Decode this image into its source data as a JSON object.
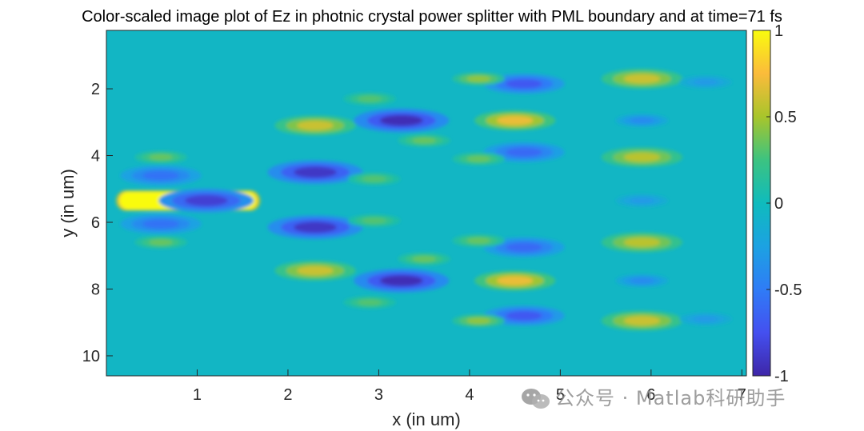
{
  "chart_data": {
    "type": "heatmap",
    "title": "Color-scaled image plot of Ez in photnic crystal power splitter with PML boundary and at time=71 fs",
    "xlabel": "x (in um)",
    "ylabel": "y (in um)",
    "xlim": [
      0,
      7.05
    ],
    "ylim": [
      10.6,
      0.25
    ],
    "y_direction": "reverse",
    "x_ticks": [
      1,
      2,
      3,
      4,
      5,
      6,
      7
    ],
    "y_ticks": [
      2,
      4,
      6,
      8,
      10
    ],
    "x_tick_labels": [
      "1",
      "2",
      "3",
      "4",
      "5",
      "6",
      "7"
    ],
    "y_tick_labels": [
      "2",
      "4",
      "6",
      "8",
      "10"
    ],
    "colorbar": {
      "limits": [
        -1,
        1
      ],
      "ticks": [
        1,
        0.5,
        0,
        -0.5,
        -1
      ],
      "tick_labels": [
        "1",
        "0.5",
        "0",
        "-0.5",
        "-1"
      ],
      "colormap": "parula"
    },
    "background_value": -0.05,
    "features": [
      {
        "x": 0.9,
        "y": 5.35,
        "value": 1.0,
        "shape": "rect",
        "w": 1.6,
        "h": 0.62
      },
      {
        "x": 1.1,
        "y": 5.35,
        "value": -0.85
      },
      {
        "x": 0.6,
        "y": 4.6,
        "value": -0.55
      },
      {
        "x": 0.6,
        "y": 6.05,
        "value": -0.55
      },
      {
        "x": 0.6,
        "y": 4.05,
        "value": 0.35
      },
      {
        "x": 0.6,
        "y": 6.6,
        "value": 0.35
      },
      {
        "x": 2.3,
        "y": 3.1,
        "value": 0.6
      },
      {
        "x": 2.3,
        "y": 4.5,
        "value": -0.9
      },
      {
        "x": 2.3,
        "y": 6.15,
        "value": -0.9
      },
      {
        "x": 2.3,
        "y": 7.45,
        "value": 0.6
      },
      {
        "x": 3.25,
        "y": 2.95,
        "value": -0.95
      },
      {
        "x": 3.25,
        "y": 7.75,
        "value": -0.95
      },
      {
        "x": 2.9,
        "y": 2.3,
        "value": 0.3
      },
      {
        "x": 2.9,
        "y": 8.4,
        "value": 0.3
      },
      {
        "x": 3.5,
        "y": 3.55,
        "value": 0.35
      },
      {
        "x": 3.5,
        "y": 7.1,
        "value": 0.35
      },
      {
        "x": 2.95,
        "y": 4.7,
        "value": 0.3
      },
      {
        "x": 2.95,
        "y": 5.95,
        "value": 0.3
      },
      {
        "x": 4.6,
        "y": 1.85,
        "value": -0.7
      },
      {
        "x": 4.5,
        "y": 2.95,
        "value": 0.7
      },
      {
        "x": 4.6,
        "y": 3.9,
        "value": -0.6
      },
      {
        "x": 4.6,
        "y": 6.75,
        "value": -0.6
      },
      {
        "x": 4.5,
        "y": 7.75,
        "value": 0.7
      },
      {
        "x": 4.6,
        "y": 8.8,
        "value": -0.7
      },
      {
        "x": 4.1,
        "y": 1.7,
        "value": 0.45
      },
      {
        "x": 4.1,
        "y": 4.1,
        "value": 0.35
      },
      {
        "x": 4.1,
        "y": 6.55,
        "value": 0.35
      },
      {
        "x": 4.1,
        "y": 8.95,
        "value": 0.45
      },
      {
        "x": 5.9,
        "y": 1.7,
        "value": 0.6
      },
      {
        "x": 5.9,
        "y": 2.95,
        "value": -0.4
      },
      {
        "x": 5.9,
        "y": 4.05,
        "value": 0.55
      },
      {
        "x": 5.9,
        "y": 5.35,
        "value": -0.3
      },
      {
        "x": 5.9,
        "y": 6.6,
        "value": 0.55
      },
      {
        "x": 5.9,
        "y": 7.75,
        "value": -0.4
      },
      {
        "x": 5.9,
        "y": 8.95,
        "value": 0.6
      },
      {
        "x": 6.6,
        "y": 1.8,
        "value": -0.3
      },
      {
        "x": 6.6,
        "y": 8.9,
        "value": -0.3
      }
    ]
  },
  "watermark": {
    "icon": "wechat-icon",
    "text": "公众号 · Matlab科研助手"
  }
}
